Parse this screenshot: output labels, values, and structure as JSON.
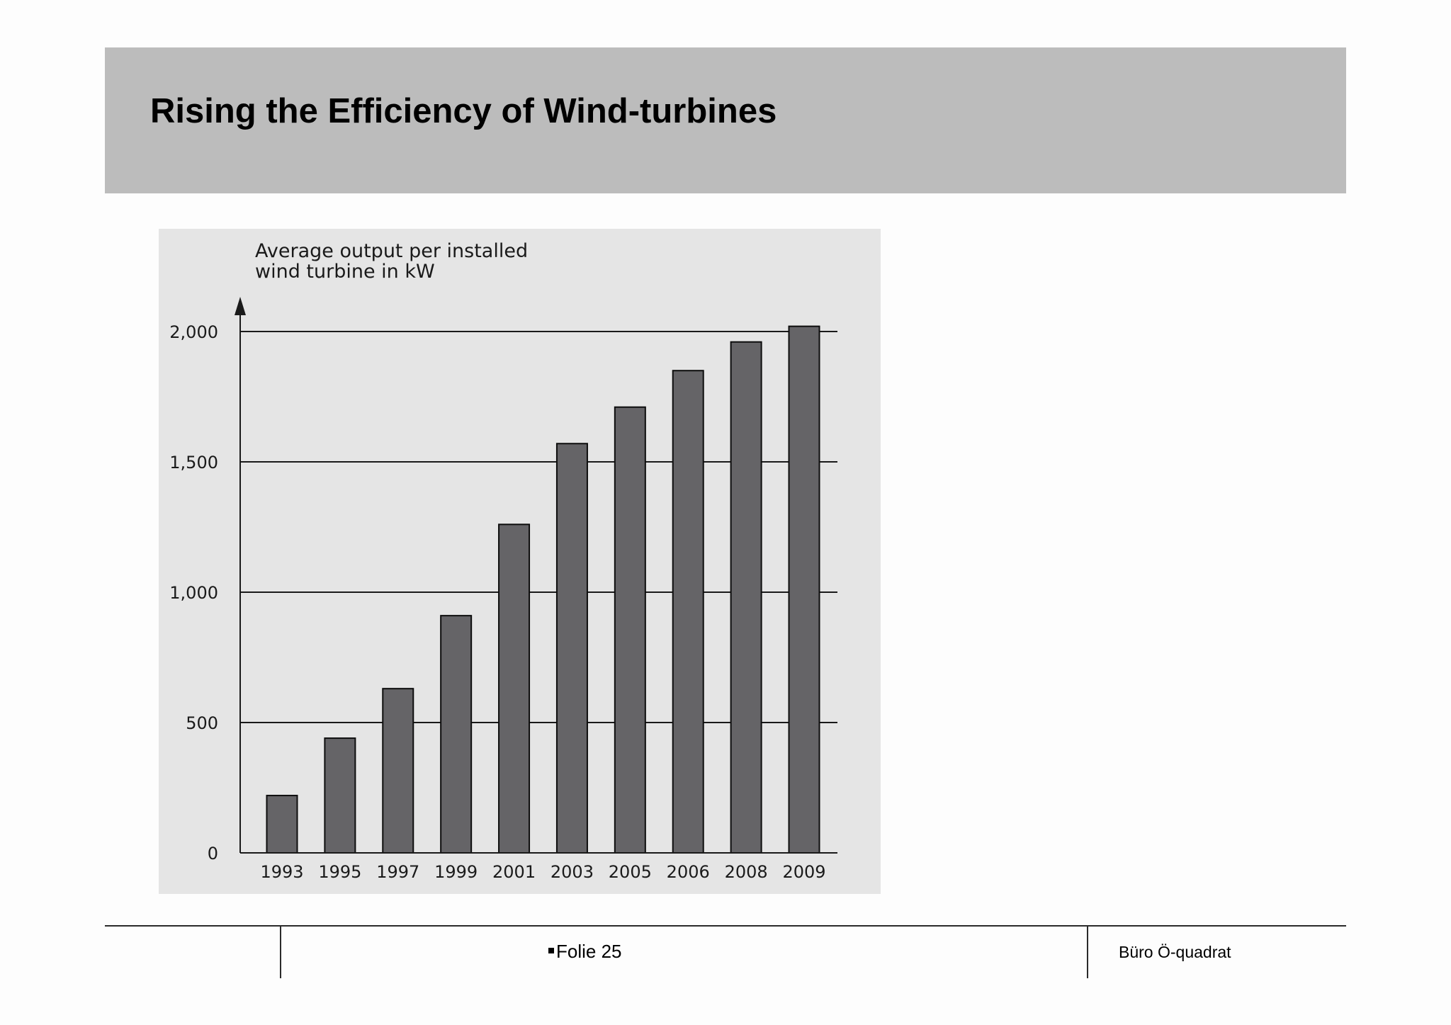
{
  "slide": {
    "title": "Rising the Efficiency of Wind-turbines"
  },
  "footer": {
    "slide_label": "Folie 25",
    "organization": "Büro Ö-quadrat"
  },
  "colors": {
    "title_band": "#bcbcbc",
    "chart_panel": "#e5e5e5",
    "bar_fill": "#656467",
    "axis": "#1a1a1a"
  },
  "chart_data": {
    "type": "bar",
    "title": "",
    "ylabel_lines": [
      "Average output per installed",
      "wind turbine in kW"
    ],
    "xlabel": "",
    "categories": [
      "1993",
      "1995",
      "1997",
      "1999",
      "2001",
      "2003",
      "2005",
      "2006",
      "2008",
      "2009"
    ],
    "values": [
      220,
      440,
      630,
      910,
      1260,
      1570,
      1710,
      1850,
      1960,
      2020
    ],
    "ylim": [
      0,
      2000
    ],
    "yticks": [
      0,
      500,
      1000,
      1500,
      2000
    ],
    "ytick_labels": [
      "0",
      "500",
      "1,000",
      "1,500",
      "2,000"
    ],
    "grid": "horizontal",
    "legend": "none"
  }
}
